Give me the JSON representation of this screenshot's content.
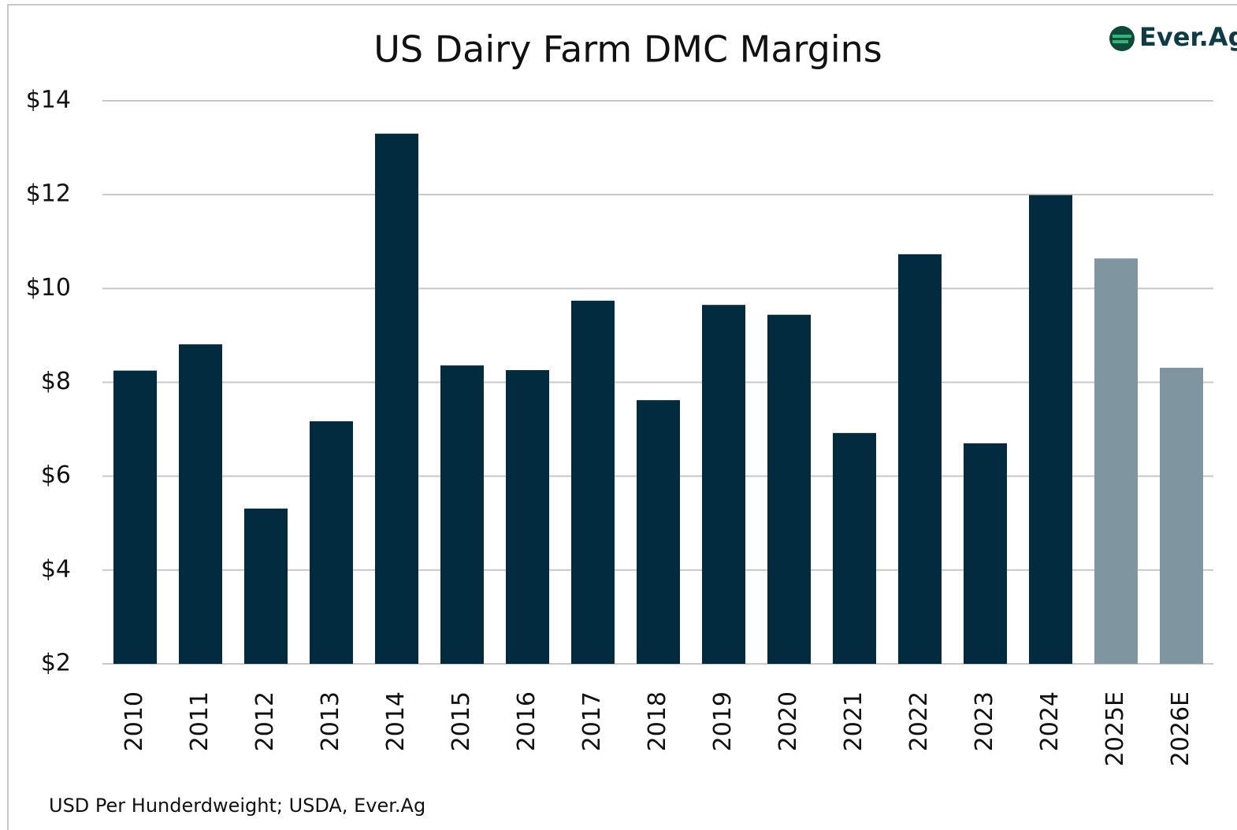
{
  "chart_data": {
    "type": "bar",
    "title": "US Dairy Farm DMC Margins",
    "logo": "Ever.Ag",
    "note": "USD Per Hunderdweight; USDA, Ever.Ag",
    "categories": [
      "2010",
      "2011",
      "2012",
      "2013",
      "2014",
      "2015",
      "2016",
      "2017",
      "2018",
      "2019",
      "2020",
      "2021",
      "2022",
      "2023",
      "2024",
      "2025E",
      "2026E"
    ],
    "values": [
      8.25,
      8.81,
      5.31,
      7.17,
      13.3,
      8.36,
      8.26,
      9.74,
      7.62,
      9.65,
      9.44,
      6.92,
      10.73,
      6.7,
      11.99,
      10.64,
      8.31
    ],
    "colors": [
      "#022b3f",
      "#022b3f",
      "#022b3f",
      "#022b3f",
      "#022b3f",
      "#022b3f",
      "#022b3f",
      "#022b3f",
      "#022b3f",
      "#022b3f",
      "#022b3f",
      "#022b3f",
      "#022b3f",
      "#022b3f",
      "#022b3f",
      "#7f96a0",
      "#7f96a0"
    ],
    "ylim": [
      2,
      14
    ],
    "yticks": [
      {
        "value": 2,
        "label": "$2"
      },
      {
        "value": 4,
        "label": "$4"
      },
      {
        "value": 6,
        "label": "$6"
      },
      {
        "value": 8,
        "label": "$8"
      },
      {
        "value": 10,
        "label": "$10"
      },
      {
        "value": 12,
        "label": "$12"
      },
      {
        "value": 14,
        "label": "$14"
      }
    ],
    "grid": true
  }
}
